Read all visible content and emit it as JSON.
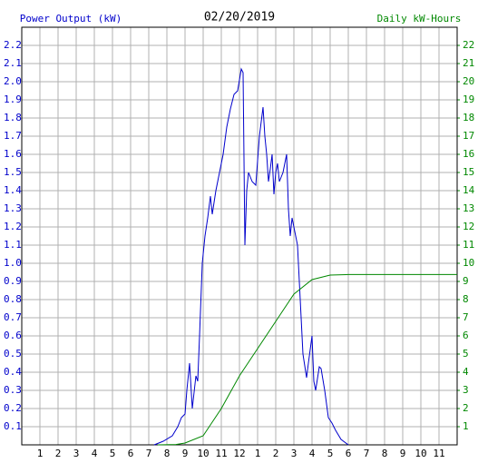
{
  "chart_data": {
    "type": "line",
    "title": "02/20/2019",
    "y_label": "Power Output (kW)",
    "y2_label": "Daily kW-Hours",
    "grid": true,
    "xlim": [
      0,
      24
    ],
    "xticks": [
      1,
      2,
      3,
      4,
      5,
      6,
      7,
      8,
      9,
      10,
      11,
      12,
      {
        "value": 13,
        "label": "1"
      },
      {
        "value": 14,
        "label": "2"
      },
      {
        "value": 15,
        "label": "3"
      },
      {
        "value": 16,
        "label": "4"
      },
      {
        "value": 17,
        "label": "5"
      },
      {
        "value": 18,
        "label": "6"
      },
      {
        "value": 19,
        "label": "7"
      },
      {
        "value": 20,
        "label": "8"
      },
      {
        "value": 21,
        "label": "9"
      },
      {
        "value": 22,
        "label": "10"
      },
      {
        "value": 23,
        "label": "11"
      }
    ],
    "ylim": [
      0,
      2.3
    ],
    "yticks": [
      0.1,
      0.2,
      0.3,
      0.4,
      0.5,
      0.6,
      0.7,
      0.8,
      0.9,
      {
        "value": 1,
        "label": "1.0"
      },
      1.1,
      1.2,
      1.3,
      1.4,
      1.5,
      1.6,
      1.7,
      1.8,
      1.9,
      {
        "value": 2,
        "label": "2.0"
      },
      2.1,
      2.2
    ],
    "y2lim": [
      0,
      23
    ],
    "y2ticks": [
      1,
      2,
      3,
      4,
      5,
      6,
      7,
      8,
      9,
      10,
      11,
      12,
      13,
      14,
      15,
      16,
      17,
      18,
      19,
      20,
      21,
      22
    ],
    "series": [
      {
        "name": "Power Output (kW)",
        "color": "#0000cc",
        "x": [
          7.3,
          7.8,
          8.3,
          8.6,
          8.8,
          9.0,
          9.1,
          9.25,
          9.4,
          9.6,
          9.7,
          9.8,
          9.95,
          10.1,
          10.25,
          10.4,
          10.5,
          10.7,
          10.9,
          11.1,
          11.3,
          11.5,
          11.7,
          11.9,
          12.1,
          12.2,
          12.3,
          12.4,
          12.5,
          12.7,
          12.9,
          13.1,
          13.3,
          13.4,
          13.5,
          13.6,
          13.7,
          13.8,
          13.9,
          14.0,
          14.1,
          14.2,
          14.4,
          14.6,
          14.7,
          14.8,
          14.9,
          15.1,
          15.2,
          15.3,
          15.5,
          15.7,
          15.8,
          16.0,
          16.1,
          16.2,
          16.4,
          16.5,
          16.7,
          16.9,
          17.1,
          17.3,
          17.6,
          18.0
        ],
        "values": [
          0,
          0.02,
          0.05,
          0.1,
          0.15,
          0.17,
          0.3,
          0.45,
          0.2,
          0.38,
          0.35,
          0.6,
          1.0,
          1.15,
          1.25,
          1.37,
          1.27,
          1.4,
          1.5,
          1.6,
          1.75,
          1.85,
          1.93,
          1.95,
          2.07,
          2.05,
          1.1,
          1.4,
          1.5,
          1.45,
          1.43,
          1.7,
          1.86,
          1.7,
          1.6,
          1.45,
          1.52,
          1.6,
          1.38,
          1.5,
          1.55,
          1.45,
          1.5,
          1.6,
          1.3,
          1.15,
          1.25,
          1.15,
          1.1,
          0.9,
          0.5,
          0.37,
          0.45,
          0.6,
          0.35,
          0.3,
          0.43,
          0.42,
          0.3,
          0.15,
          0.12,
          0.08,
          0.03,
          0
        ]
      },
      {
        "name": "Daily kW-Hours",
        "color": "#008800",
        "axis": "y2",
        "x": [
          7.5,
          8.5,
          9,
          10,
          11,
          12,
          13,
          14,
          15,
          16,
          17,
          18,
          24
        ],
        "values": [
          0,
          0.02,
          0.1,
          0.5,
          2,
          3.8,
          5.3,
          6.8,
          8.3,
          9.1,
          9.35,
          9.38,
          9.38
        ]
      }
    ]
  }
}
